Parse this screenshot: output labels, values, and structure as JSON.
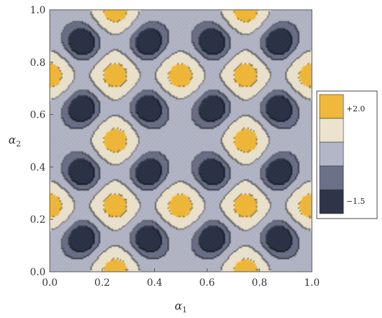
{
  "chart_data": {
    "type": "heatmap",
    "subtype": "contour",
    "title": "",
    "xlabel": "α",
    "xlabel_sub": "1",
    "ylabel": "α",
    "ylabel_sub": "2",
    "xlim": [
      0,
      1
    ],
    "ylim": [
      0,
      1
    ],
    "xticks": [
      "0.0",
      "0.2",
      "0.4",
      "0.6",
      "0.8",
      "1.0"
    ],
    "yticks": [
      "0.0",
      "0.2",
      "0.4",
      "0.6",
      "0.8",
      "1.0"
    ],
    "contour_levels": [
      -1.0,
      0.0,
      1.0,
      1.75
    ],
    "value_range": [
      -1.5,
      2.0
    ],
    "legend": {
      "placement": "right",
      "max_label": "+2.0",
      "min_label": "−1.5",
      "bands": [
        {
          "color": "#f1b93b"
        },
        {
          "color": "#ebe3cd"
        },
        {
          "color": "#b3b6c6"
        },
        {
          "color": "#6c7189"
        },
        {
          "color": "#2e3548"
        }
      ]
    },
    "peaks": [
      {
        "x": 0.0,
        "y": 0.75
      },
      {
        "x": 0.25,
        "y": 0.75
      },
      {
        "x": 0.5,
        "y": 0.75
      },
      {
        "x": 0.75,
        "y": 0.75
      },
      {
        "x": 1.0,
        "y": 0.75
      },
      {
        "x": 0.0,
        "y": 0.25
      },
      {
        "x": 0.25,
        "y": 0.25
      },
      {
        "x": 0.5,
        "y": 0.25
      },
      {
        "x": 0.75,
        "y": 0.25
      },
      {
        "x": 1.0,
        "y": 0.25
      },
      {
        "x": 0.25,
        "y": 1.0
      },
      {
        "x": 0.75,
        "y": 1.0
      },
      {
        "x": 0.25,
        "y": 0.5
      },
      {
        "x": 0.75,
        "y": 0.5
      },
      {
        "x": 0.25,
        "y": 0.0
      },
      {
        "x": 0.75,
        "y": 0.0
      }
    ],
    "troughs": [
      {
        "x": 0.125,
        "y": 0.875
      },
      {
        "x": 0.375,
        "y": 0.875
      },
      {
        "x": 0.625,
        "y": 0.875
      },
      {
        "x": 0.875,
        "y": 0.875
      },
      {
        "x": 0.125,
        "y": 0.625
      },
      {
        "x": 0.375,
        "y": 0.625
      },
      {
        "x": 0.625,
        "y": 0.625
      },
      {
        "x": 0.875,
        "y": 0.625
      },
      {
        "x": 0.125,
        "y": 0.375
      },
      {
        "x": 0.375,
        "y": 0.375
      },
      {
        "x": 0.625,
        "y": 0.375
      },
      {
        "x": 0.875,
        "y": 0.375
      },
      {
        "x": 0.125,
        "y": 0.125
      },
      {
        "x": 0.375,
        "y": 0.125
      },
      {
        "x": 0.625,
        "y": 0.125
      },
      {
        "x": 0.875,
        "y": 0.125
      }
    ]
  }
}
